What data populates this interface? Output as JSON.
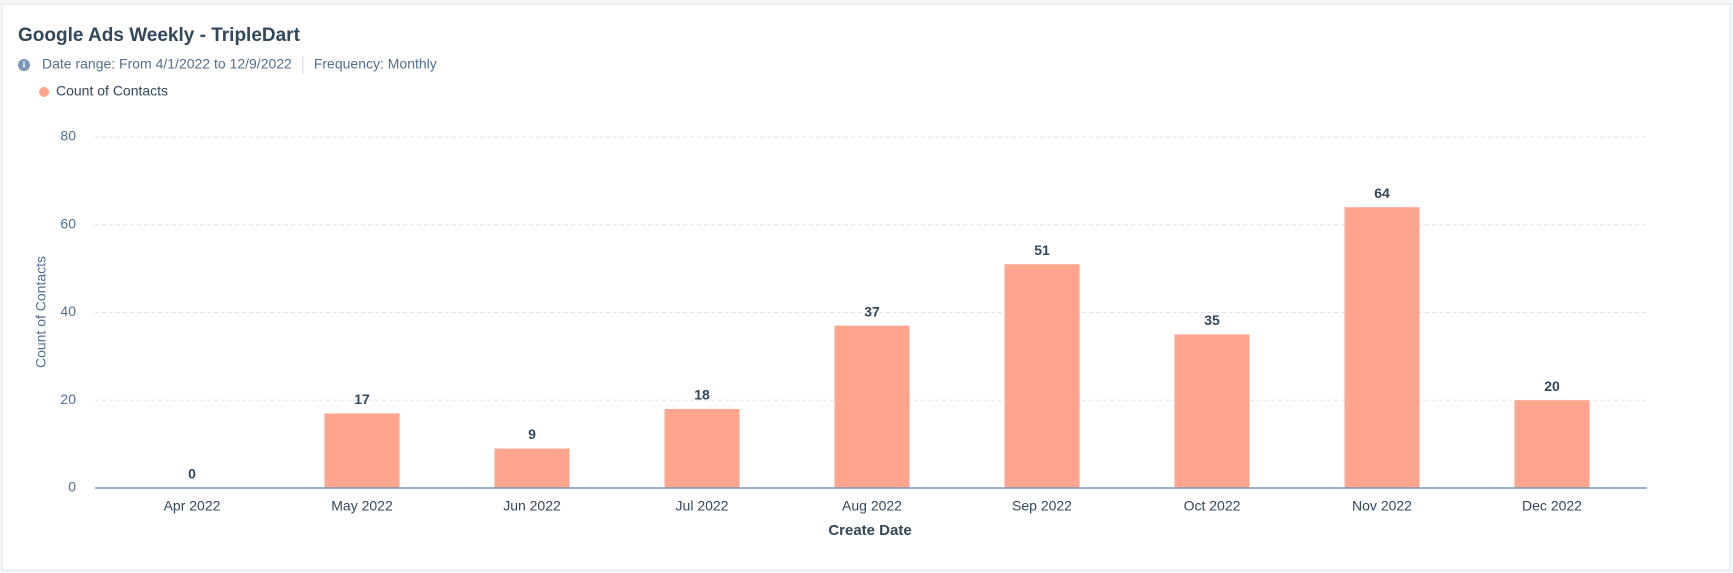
{
  "chart_data": {
    "type": "bar",
    "title": "Google Ads Weekly - TripleDart",
    "date_range": "Date range: From 4/1/2022 to 12/9/2022",
    "frequency": "Frequency: Monthly",
    "x_label": "Create Date",
    "y_label": "Count of Contacts",
    "categories": [
      "Apr 2022",
      "May 2022",
      "Jun 2022",
      "Jul 2022",
      "Aug 2022",
      "Sep 2022",
      "Oct 2022",
      "Nov 2022",
      "Dec 2022"
    ],
    "series": [
      {
        "name": "Count of Contacts",
        "color": "#ffa58e",
        "values": [
          0,
          17,
          9,
          18,
          37,
          51,
          35,
          64,
          20
        ]
      }
    ],
    "ylim": [
      0,
      80
    ],
    "yticks": [
      0,
      20,
      40,
      60,
      80
    ],
    "grid": true,
    "legend": "top-left"
  }
}
